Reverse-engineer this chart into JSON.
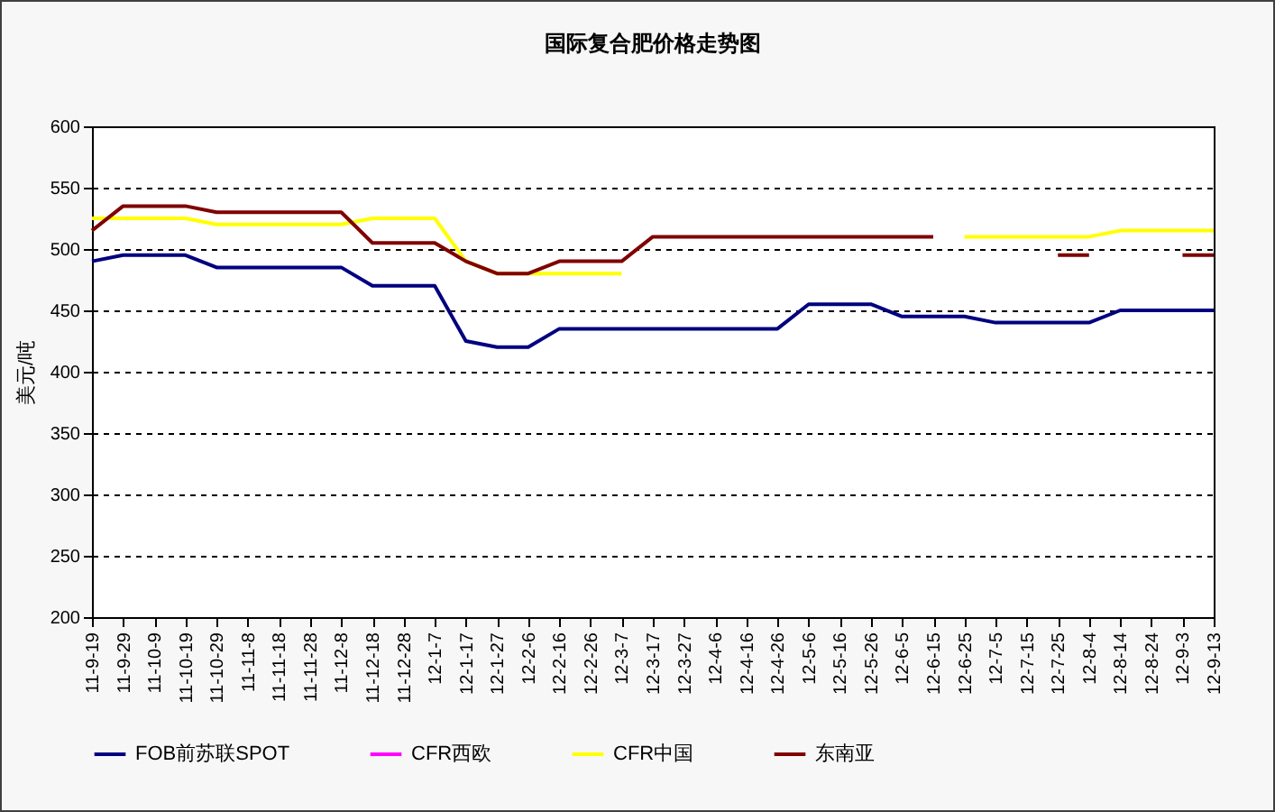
{
  "chart_data": {
    "type": "line",
    "title": "国际复合肥价格走势图",
    "ylabel": "美元/吨",
    "categories": [
      "11-9-19",
      "11-9-29",
      "11-10-9",
      "11-10-19",
      "11-10-29",
      "11-11-8",
      "11-11-18",
      "11-11-28",
      "11-12-8",
      "11-12-18",
      "11-12-28",
      "12-1-7",
      "12-1-17",
      "12-1-27",
      "12-2-6",
      "12-2-16",
      "12-2-26",
      "12-3-7",
      "12-3-17",
      "12-3-27",
      "12-4-6",
      "12-4-16",
      "12-4-26",
      "12-5-6",
      "12-5-16",
      "12-5-26",
      "12-6-5",
      "12-6-15",
      "12-6-25",
      "12-7-5",
      "12-7-15",
      "12-7-25",
      "12-8-4",
      "12-8-14",
      "12-8-24",
      "12-9-3",
      "12-9-13"
    ],
    "series": [
      {
        "name": "FOB前苏联SPOT",
        "color": "#000080",
        "values": [
          490,
          495,
          495,
          495,
          485,
          485,
          485,
          485,
          485,
          470,
          470,
          470,
          425,
          420,
          420,
          435,
          435,
          435,
          435,
          435,
          435,
          435,
          435,
          455,
          455,
          455,
          445,
          445,
          445,
          440,
          440,
          440,
          440,
          450,
          450,
          450,
          450
        ]
      },
      {
        "name": "CFR西欧",
        "color": "#ff00ff",
        "values": [
          null,
          null,
          null,
          null,
          null,
          null,
          null,
          null,
          null,
          null,
          null,
          null,
          null,
          null,
          null,
          null,
          null,
          null,
          null,
          null,
          null,
          null,
          null,
          null,
          null,
          null,
          null,
          null,
          null,
          null,
          null,
          null,
          null,
          null,
          null,
          null,
          null
        ]
      },
      {
        "name": "CFR中国",
        "color": "#ffff00",
        "values": [
          525,
          525,
          525,
          525,
          520,
          520,
          520,
          520,
          520,
          525,
          525,
          525,
          490,
          480,
          480,
          480,
          480,
          480,
          null,
          null,
          null,
          null,
          null,
          null,
          null,
          null,
          null,
          null,
          510,
          510,
          510,
          510,
          510,
          515,
          515,
          515,
          515
        ]
      },
      {
        "name": "东南亚",
        "color": "#800000",
        "values": [
          515,
          535,
          535,
          535,
          530,
          530,
          530,
          530,
          530,
          505,
          505,
          505,
          490,
          480,
          480,
          490,
          490,
          490,
          510,
          510,
          510,
          510,
          510,
          510,
          510,
          510,
          510,
          510,
          null,
          null,
          null,
          495,
          495,
          null,
          null,
          495,
          495
        ]
      }
    ],
    "ylim": [
      200,
      600
    ],
    "yticks": [
      200,
      250,
      300,
      350,
      400,
      450,
      500,
      550,
      600
    ],
    "grid": "y",
    "legend": "bottom"
  }
}
